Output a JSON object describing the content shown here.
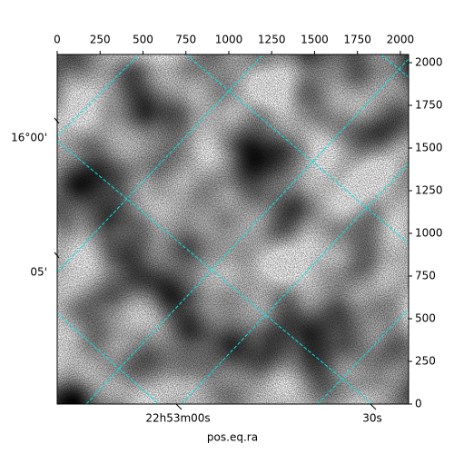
{
  "chart_data": {
    "type": "image",
    "xlabel": "pos.eq.ra",
    "xlim": [
      0,
      2048
    ],
    "ylim": [
      0,
      2048
    ],
    "xticks": [
      0,
      250,
      500,
      750,
      1000,
      1250,
      1500,
      1750,
      2000
    ],
    "yticks": [
      0,
      250,
      500,
      750,
      1000,
      1250,
      1500,
      1750,
      2000
    ],
    "ra_ticks": [
      "22h53m00s",
      "30s"
    ],
    "dec_ticks": [
      "16°00'",
      "05'"
    ]
  }
}
